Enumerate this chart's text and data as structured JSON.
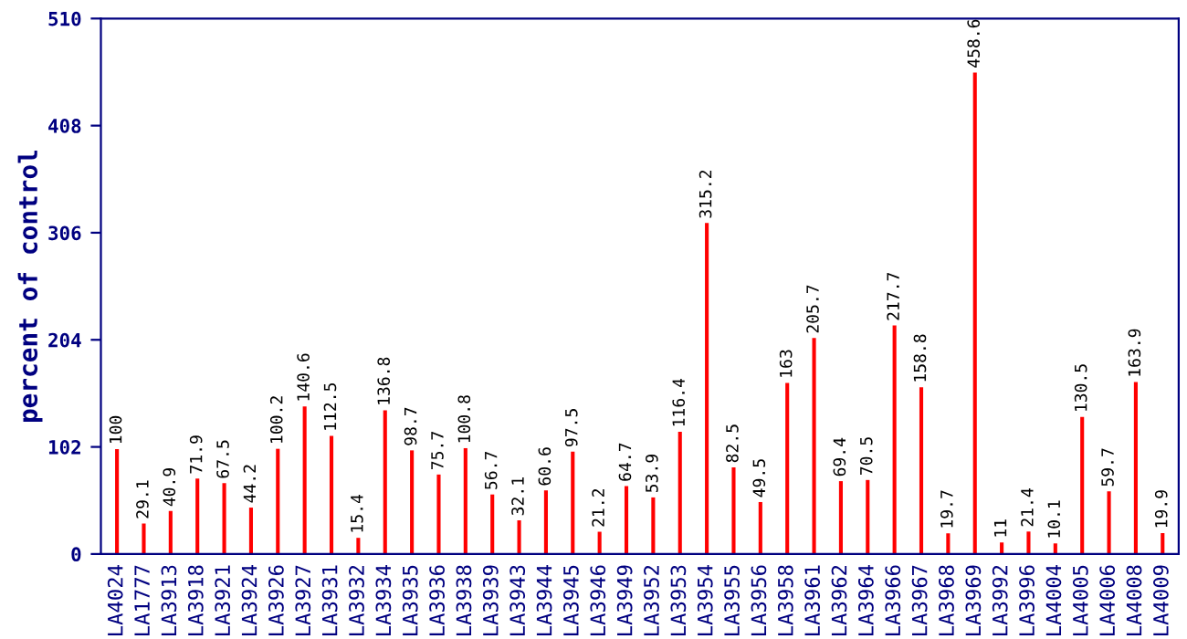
{
  "chart_data": {
    "type": "bar",
    "ylabel": "percent of control",
    "categories": [
      "LA4024",
      "LA1777",
      "LA3913",
      "LA3918",
      "LA3921",
      "LA3924",
      "LA3926",
      "LA3927",
      "LA3931",
      "LA3932",
      "LA3934",
      "LA3935",
      "LA3936",
      "LA3938",
      "LA3939",
      "LA3943",
      "LA3944",
      "LA3945",
      "LA3946",
      "LA3949",
      "LA3952",
      "LA3953",
      "LA3954",
      "LA3955",
      "LA3956",
      "LA3958",
      "LA3961",
      "LA3962",
      "LA3964",
      "LA3966",
      "LA3967",
      "LA3968",
      "LA3969",
      "LA3992",
      "LA3996",
      "LA4004",
      "LA4005",
      "LA4006",
      "LA4008",
      "LA4009"
    ],
    "values": [
      100,
      29.1,
      40.9,
      71.9,
      67.5,
      44.2,
      100.2,
      140.6,
      112.5,
      15.4,
      136.8,
      98.7,
      75.7,
      100.8,
      56.7,
      32.1,
      60.6,
      97.5,
      21.2,
      64.7,
      53.9,
      116.4,
      315.2,
      82.5,
      49.5,
      163,
      205.7,
      69.4,
      70.5,
      217.7,
      158.8,
      19.7,
      458.6,
      11,
      21.4,
      10.1,
      130.5,
      59.7,
      163.9,
      19.9
    ],
    "color": "#ff0000",
    "ylim": [
      0,
      510
    ],
    "yticks": [
      0,
      102,
      204,
      306,
      408,
      510
    ],
    "grid": false,
    "data_labels": true
  }
}
